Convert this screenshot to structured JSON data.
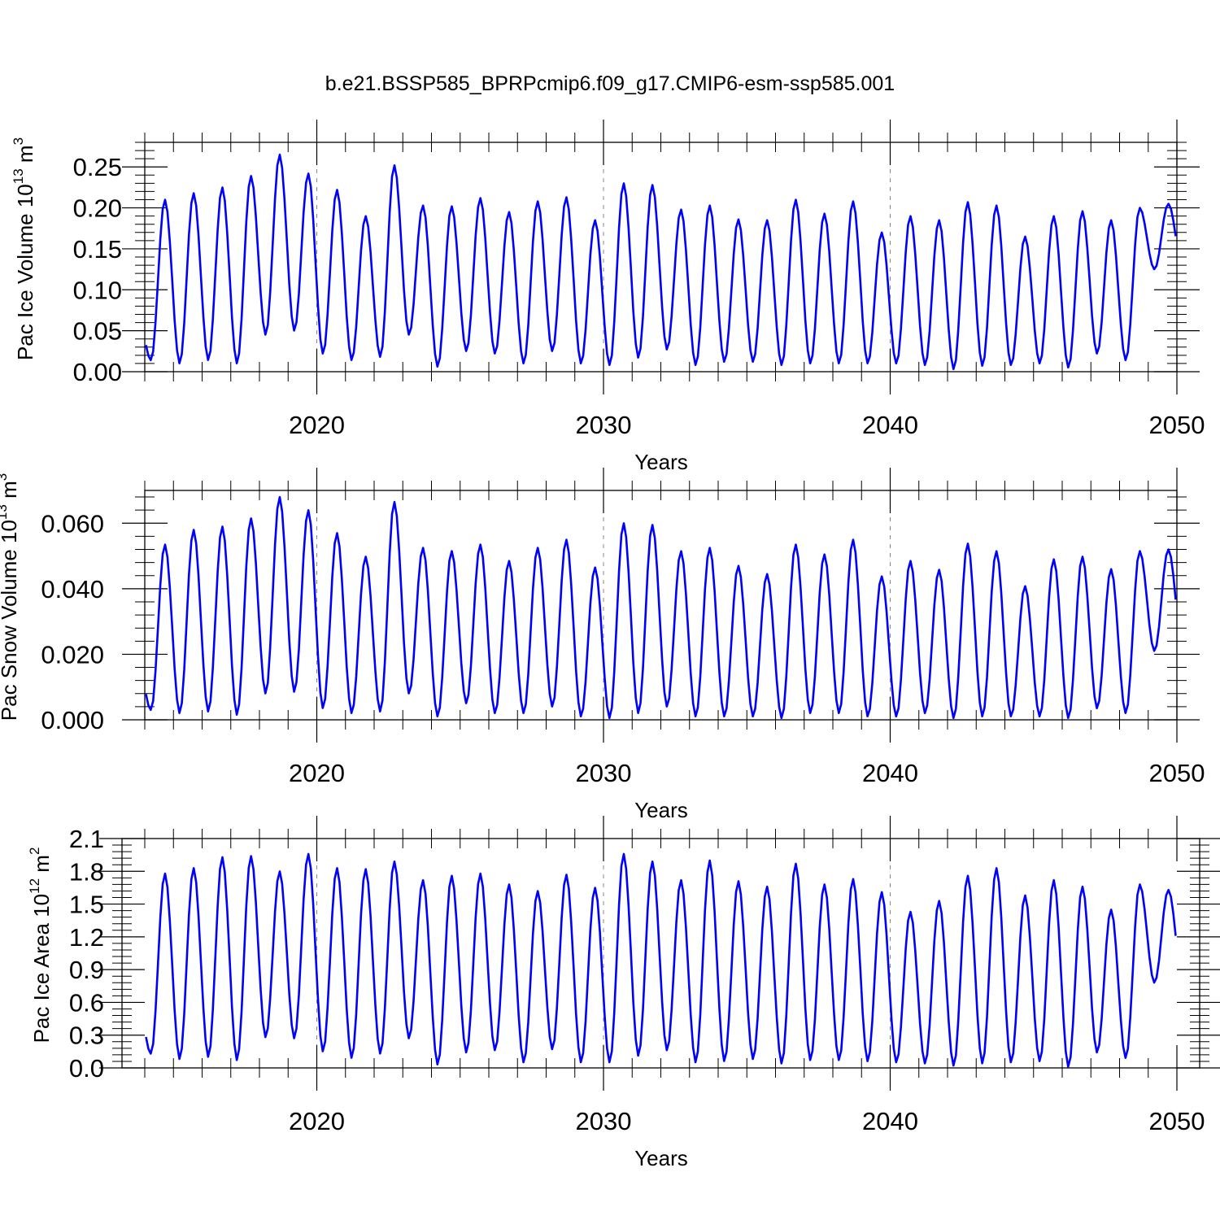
{
  "title": "b.e21.BSSP585_BPRPcmip6.f09_g17.CMIP6-esm-ssp585.001",
  "colors": {
    "series": "#0000ff",
    "axis": "#000000",
    "grid": "#888888"
  },
  "chart_data": [
    {
      "type": "line",
      "ylabel": "Pac Ice Volume",
      "yunit_base": "10",
      "yunit_exp": "13",
      "yunit_m": "m",
      "yunit_mexp": "3",
      "xlabel": "Years",
      "xlim": [
        2014.0,
        2050.0
      ],
      "ylim": [
        0.0,
        0.28
      ],
      "yticks": [
        "0.00",
        "0.05",
        "0.10",
        "0.15",
        "0.20",
        "0.25"
      ],
      "yticks_values": [
        0.0,
        0.05,
        0.1,
        0.15,
        0.2,
        0.25
      ],
      "xticks": [
        "2020",
        "2030",
        "2040",
        "2050"
      ],
      "xticks_values": [
        2020,
        2030,
        2040,
        2050
      ],
      "vgrid": [
        2020,
        2030,
        2040
      ],
      "series_name": "",
      "annual_max": [
        0.21,
        0.218,
        0.225,
        0.239,
        0.265,
        0.242,
        0.222,
        0.19,
        0.252,
        0.203,
        0.202,
        0.212,
        0.195,
        0.208,
        0.213,
        0.185,
        0.23,
        0.228,
        0.198,
        0.203,
        0.186,
        0.185,
        0.21,
        0.193,
        0.208,
        0.17,
        0.19,
        0.185,
        0.207,
        0.203,
        0.165,
        0.19,
        0.196,
        0.185,
        0.2,
        0.205
      ],
      "annual_min": [
        0.014,
        0.01,
        0.014,
        0.01,
        0.045,
        0.05,
        0.022,
        0.014,
        0.018,
        0.045,
        0.006,
        0.025,
        0.022,
        0.01,
        0.025,
        0.01,
        0.008,
        0.017,
        0.027,
        0.008,
        0.012,
        0.012,
        0.008,
        0.01,
        0.01,
        0.01,
        0.01,
        0.008,
        0.003,
        0.007,
        0.008,
        0.01,
        0.005,
        0.022,
        0.014,
        0.125
      ]
    },
    {
      "type": "line",
      "ylabel": "Pac Snow Volume",
      "yunit_base": "10",
      "yunit_exp": "13",
      "yunit_m": "m",
      "yunit_mexp": "3",
      "xlabel": "Years",
      "xlim": [
        2014.0,
        2050.0
      ],
      "ylim": [
        0.0,
        0.07
      ],
      "yticks": [
        "0.000",
        "0.020",
        "0.040",
        "0.060"
      ],
      "yticks_values": [
        0.0,
        0.02,
        0.04,
        0.06
      ],
      "xticks": [
        "2020",
        "2030",
        "2040",
        "2050"
      ],
      "xticks_values": [
        2020,
        2030,
        2040,
        2050
      ],
      "vgrid": [
        2020,
        2030,
        2040
      ],
      "series_name": "",
      "annual_max": [
        0.0535,
        0.058,
        0.059,
        0.0615,
        0.068,
        0.064,
        0.057,
        0.0498,
        0.0665,
        0.0525,
        0.0515,
        0.0535,
        0.0485,
        0.0525,
        0.055,
        0.0465,
        0.06,
        0.0595,
        0.0515,
        0.0525,
        0.047,
        0.0445,
        0.0535,
        0.0505,
        0.055,
        0.0438,
        0.0485,
        0.0458,
        0.0538,
        0.0515,
        0.0408,
        0.049,
        0.0498,
        0.046,
        0.0515,
        0.052
      ],
      "annual_min": [
        0.003,
        0.002,
        0.0025,
        0.0015,
        0.008,
        0.0085,
        0.0035,
        0.002,
        0.0025,
        0.008,
        0.001,
        0.005,
        0.002,
        0.002,
        0.004,
        0.001,
        0.0005,
        0.002,
        0.004,
        0.001,
        0.001,
        0.001,
        0.0005,
        0.002,
        0.002,
        0.001,
        0.001,
        0.002,
        0.0005,
        0.001,
        0.001,
        0.001,
        0.0005,
        0.0035,
        0.002,
        0.021
      ]
    },
    {
      "type": "line",
      "ylabel": "Pac Ice Area",
      "yunit_base": "10",
      "yunit_exp": "12",
      "yunit_m": "m",
      "yunit_mexp": "2",
      "xlabel": "Years",
      "xlim": [
        2014.0,
        2050.0
      ],
      "ylim": [
        0.0,
        2.1
      ],
      "yticks": [
        "0.0",
        "0.3",
        "0.6",
        "0.9",
        "1.2",
        "1.5",
        "1.8",
        "2.1"
      ],
      "yticks_values": [
        0.0,
        0.3,
        0.6,
        0.9,
        1.2,
        1.5,
        1.8,
        2.1
      ],
      "xticks": [
        "2020",
        "2030",
        "2040",
        "2050"
      ],
      "xticks_values": [
        2020,
        2030,
        2040,
        2050
      ],
      "vgrid": [
        2020,
        2030,
        2040
      ],
      "series_name": "",
      "annual_max": [
        1.78,
        1.83,
        1.93,
        1.94,
        1.8,
        1.96,
        1.83,
        1.82,
        1.89,
        1.72,
        1.76,
        1.78,
        1.68,
        1.62,
        1.77,
        1.65,
        1.96,
        1.89,
        1.72,
        1.9,
        1.71,
        1.66,
        1.87,
        1.68,
        1.73,
        1.61,
        1.43,
        1.53,
        1.76,
        1.83,
        1.58,
        1.72,
        1.66,
        1.45,
        1.68,
        1.63
      ],
      "annual_min": [
        0.13,
        0.08,
        0.1,
        0.07,
        0.28,
        0.27,
        0.15,
        0.09,
        0.13,
        0.27,
        0.03,
        0.14,
        0.16,
        0.05,
        0.17,
        0.05,
        0.05,
        0.11,
        0.16,
        0.05,
        0.06,
        0.08,
        0.04,
        0.07,
        0.07,
        0.06,
        0.05,
        0.04,
        0.02,
        0.04,
        0.05,
        0.06,
        0.01,
        0.14,
        0.09,
        0.78
      ]
    }
  ]
}
